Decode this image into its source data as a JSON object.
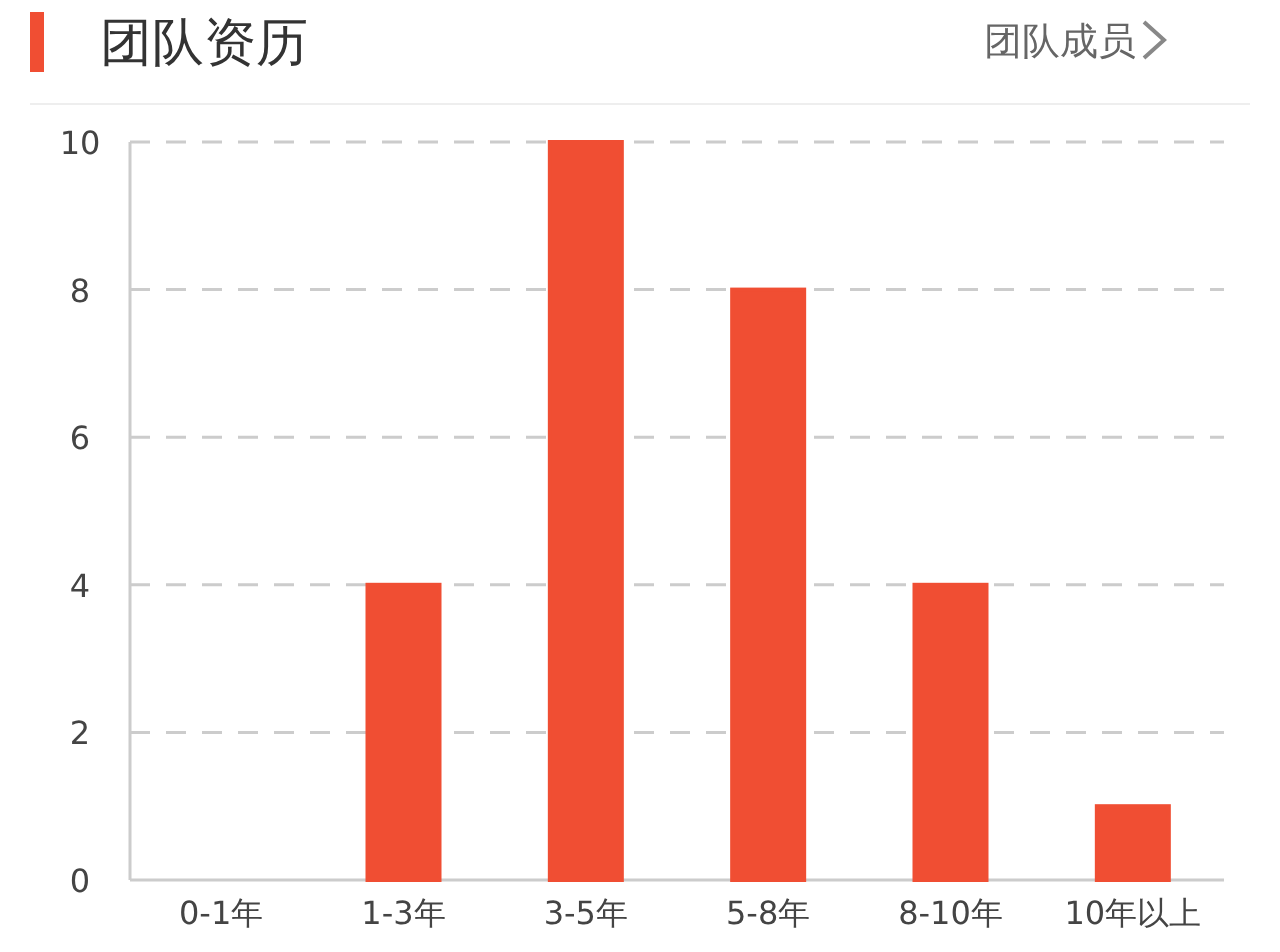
{
  "chart_data": {
    "type": "bar",
    "title": "团队资历",
    "annotations": [
      "团队成员"
    ],
    "categories": [
      "0-1年",
      "1-3年",
      "3-5年",
      "5-8年",
      "8-10年",
      "10年以上"
    ],
    "values": [
      0,
      4,
      10,
      8,
      4,
      1
    ],
    "color": "#f04e33",
    "ylim": [
      0,
      10
    ],
    "yticks": [
      0,
      2,
      4,
      6,
      8,
      10
    ],
    "grid": "y"
  }
}
